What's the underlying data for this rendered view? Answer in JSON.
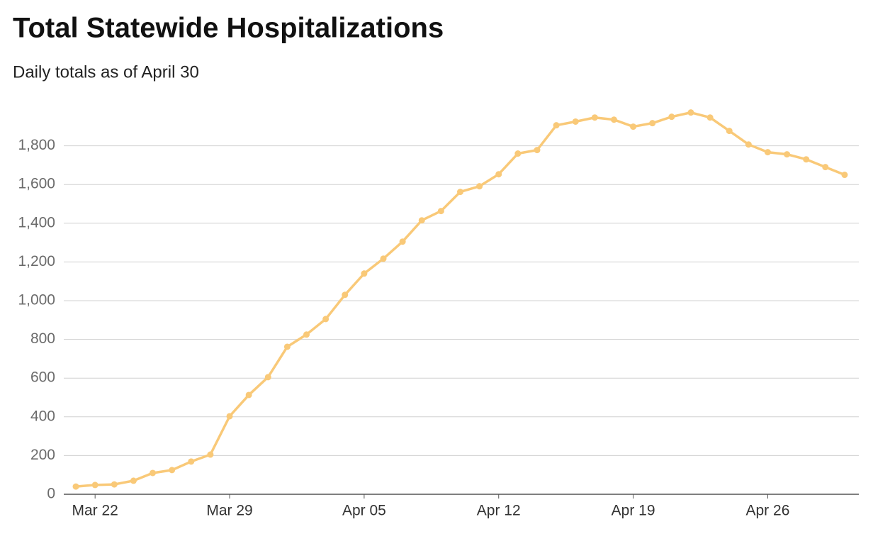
{
  "chart_data": {
    "type": "line",
    "title": "Total Statewide Hospitalizations",
    "subtitle": "Daily totals as of April 30",
    "categories": [
      null,
      "Mar 22",
      null,
      null,
      null,
      null,
      null,
      null,
      "Mar 29",
      null,
      null,
      null,
      null,
      null,
      null,
      "Apr 05",
      null,
      null,
      null,
      null,
      null,
      null,
      "Apr 12",
      null,
      null,
      null,
      null,
      null,
      null,
      "Apr 19",
      null,
      null,
      null,
      null,
      null,
      null,
      "Apr 26",
      null,
      null,
      null,
      null
    ],
    "values": [
      40,
      48,
      51,
      70,
      110,
      125,
      169,
      205,
      403,
      513,
      605,
      762,
      825,
      905,
      1030,
      1140,
      1217,
      1305,
      1415,
      1463,
      1562,
      1591,
      1653,
      1760,
      1778,
      1906,
      1925,
      1946,
      1935,
      1899,
      1917,
      1950,
      1972,
      1946,
      1877,
      1807,
      1767,
      1756,
      1730,
      1690,
      1650
    ],
    "color": "#f9c978",
    "ylim": [
      0,
      2000
    ],
    "yticks": [
      0,
      200,
      400,
      600,
      800,
      {
        "value": 1000,
        "label": "1,000"
      },
      {
        "value": 1200,
        "label": "1,200"
      },
      {
        "value": 1400,
        "label": "1,400"
      },
      {
        "value": 1600,
        "label": "1,600"
      },
      {
        "value": 1800,
        "label": "1,800"
      }
    ],
    "grid": true
  }
}
